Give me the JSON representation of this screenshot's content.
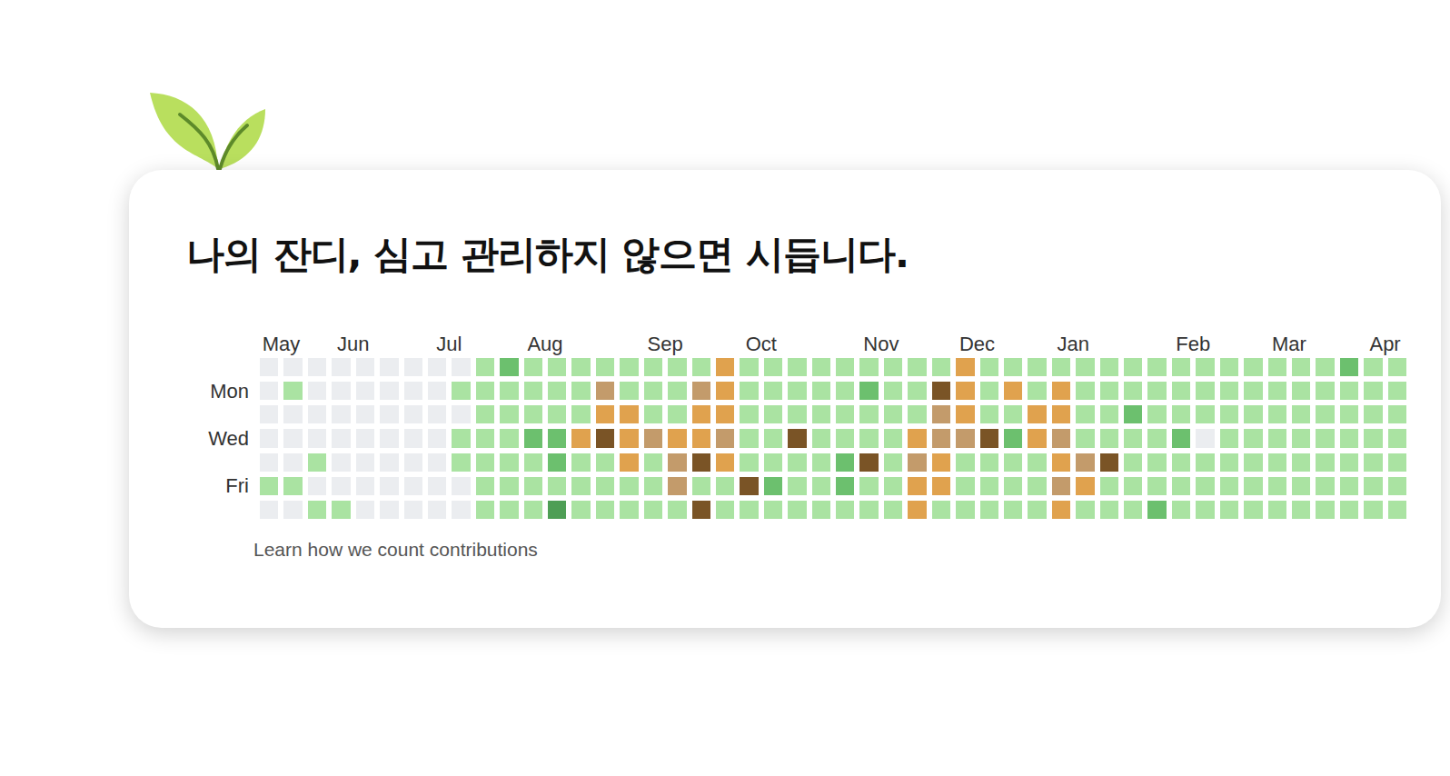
{
  "title": "나의 잔디, 심고 관리하지 않으면 시듭니다.",
  "chart_data": {
    "type": "heatmap",
    "categories": [
      "May",
      null,
      null,
      "Jun",
      null,
      null,
      null,
      "Jul",
      null,
      null,
      null,
      "Aug",
      null,
      null,
      null,
      null,
      "Sep",
      null,
      null,
      null,
      "Oct",
      null,
      null,
      null,
      null,
      "Nov",
      null,
      null,
      null,
      "Dec",
      null,
      null,
      null,
      "Jan",
      null,
      null,
      null,
      null,
      "Feb",
      null,
      null,
      null,
      "Mar",
      null,
      null,
      null,
      "Apr",
      null
    ],
    "rows": [
      null,
      "Mon",
      null,
      "Wed",
      null,
      "Fri",
      null
    ],
    "colorscale": [
      "#ebedf0",
      "#aae3a2",
      "#6cc06e",
      "#4e9e55",
      "#e0a24e",
      "#c39b6b",
      "#7a5426"
    ],
    "cells": [
      [
        0,
        0,
        0,
        0,
        0,
        0,
        0,
        0,
        0,
        1,
        2,
        1,
        1,
        1,
        1,
        1,
        1,
        1,
        1,
        4,
        1,
        1,
        1,
        1,
        1,
        1,
        1,
        1,
        1,
        4,
        1,
        1,
        1,
        1,
        1,
        1,
        1,
        1,
        1,
        1,
        1,
        1,
        1,
        1,
        1,
        2,
        1,
        1
      ],
      [
        0,
        1,
        0,
        0,
        0,
        0,
        0,
        0,
        1,
        1,
        1,
        1,
        1,
        1,
        5,
        1,
        1,
        1,
        5,
        4,
        1,
        1,
        1,
        1,
        1,
        2,
        1,
        1,
        6,
        4,
        1,
        4,
        1,
        4,
        1,
        1,
        1,
        1,
        1,
        1,
        1,
        1,
        1,
        1,
        1,
        1,
        1,
        1
      ],
      [
        0,
        0,
        0,
        0,
        0,
        0,
        0,
        0,
        0,
        1,
        1,
        1,
        1,
        1,
        4,
        4,
        1,
        1,
        4,
        4,
        1,
        1,
        1,
        1,
        1,
        1,
        1,
        1,
        5,
        4,
        1,
        1,
        4,
        4,
        1,
        1,
        2,
        1,
        1,
        1,
        1,
        1,
        1,
        1,
        1,
        1,
        1,
        1
      ],
      [
        0,
        0,
        0,
        0,
        0,
        0,
        0,
        0,
        1,
        1,
        1,
        2,
        2,
        4,
        6,
        4,
        5,
        4,
        4,
        5,
        1,
        1,
        6,
        1,
        1,
        1,
        1,
        4,
        5,
        5,
        6,
        2,
        4,
        5,
        1,
        1,
        1,
        1,
        2,
        0,
        1,
        1,
        1,
        1,
        1,
        1,
        1,
        1
      ],
      [
        0,
        0,
        1,
        0,
        0,
        0,
        0,
        0,
        1,
        1,
        1,
        1,
        2,
        1,
        1,
        4,
        1,
        5,
        6,
        4,
        1,
        1,
        1,
        1,
        2,
        6,
        1,
        5,
        4,
        1,
        1,
        1,
        1,
        4,
        5,
        6,
        1,
        1,
        1,
        1,
        1,
        1,
        1,
        1,
        1,
        1,
        1,
        1
      ],
      [
        1,
        1,
        0,
        0,
        0,
        0,
        0,
        0,
        0,
        1,
        1,
        1,
        1,
        1,
        1,
        1,
        1,
        5,
        1,
        1,
        6,
        2,
        1,
        1,
        2,
        1,
        1,
        4,
        4,
        1,
        1,
        1,
        1,
        5,
        4,
        1,
        1,
        1,
        1,
        1,
        1,
        1,
        1,
        1,
        1,
        1,
        1,
        1
      ],
      [
        0,
        0,
        1,
        1,
        0,
        0,
        0,
        0,
        0,
        1,
        1,
        1,
        3,
        1,
        1,
        1,
        1,
        1,
        6,
        1,
        1,
        1,
        1,
        1,
        1,
        1,
        1,
        4,
        1,
        1,
        1,
        1,
        1,
        4,
        1,
        1,
        1,
        2,
        1,
        1,
        1,
        1,
        1,
        1,
        1,
        1,
        1,
        1
      ]
    ],
    "footer": "Learn how we count contributions"
  }
}
